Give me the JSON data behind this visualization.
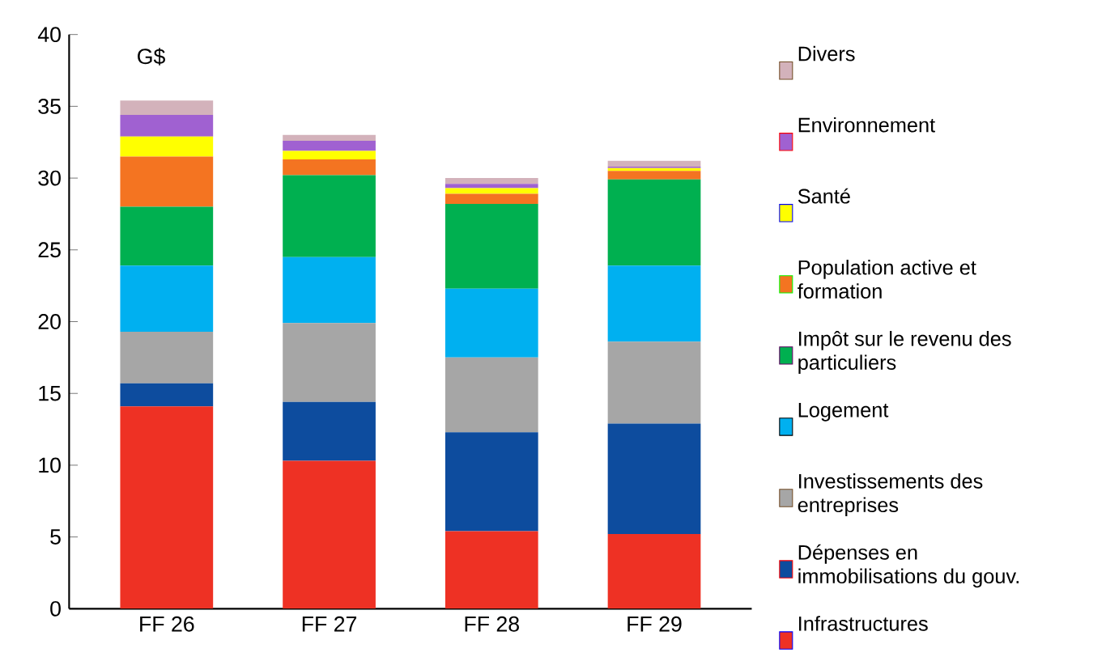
{
  "chart_data": {
    "type": "bar",
    "stacked": true,
    "ylabel": "G$",
    "categories": [
      "FF 26",
      "FF 27",
      "FF 28",
      "FF 29"
    ],
    "series": [
      {
        "name": "Infrastructures",
        "color": "#ee3124",
        "values": [
          14.1,
          10.3,
          5.4,
          5.2
        ]
      },
      {
        "name": "Dépenses en immobilisations du gouv.",
        "color": "#0d4c9e",
        "values": [
          1.6,
          4.1,
          6.9,
          7.7
        ]
      },
      {
        "name": "Investissements des entreprises",
        "color": "#a6a6a6",
        "values": [
          3.6,
          5.5,
          5.2,
          5.7
        ]
      },
      {
        "name": "Logement",
        "color": "#00b0f0",
        "values": [
          4.6,
          4.6,
          4.8,
          5.3
        ]
      },
      {
        "name": "Impôt sur le revenu des particuliers",
        "color": "#00b050",
        "values": [
          4.1,
          5.7,
          5.9,
          6.0
        ]
      },
      {
        "name": "Population active et formation",
        "color": "#f47421",
        "values": [
          3.5,
          1.1,
          0.7,
          0.6
        ]
      },
      {
        "name": "Santé",
        "color": "#ffff00",
        "values": [
          1.4,
          0.6,
          0.4,
          0.2
        ]
      },
      {
        "name": "Environnement",
        "color": "#a061d1",
        "values": [
          1.5,
          0.7,
          0.3,
          0.1
        ]
      },
      {
        "name": "Divers",
        "color": "#d3b2bb",
        "values": [
          1.0,
          0.4,
          0.4,
          0.4
        ]
      }
    ],
    "ylim": [
      0,
      40
    ],
    "yticks": [
      0,
      5,
      10,
      15,
      20,
      25,
      30,
      35,
      40
    ],
    "legend": "right",
    "grid": false
  }
}
